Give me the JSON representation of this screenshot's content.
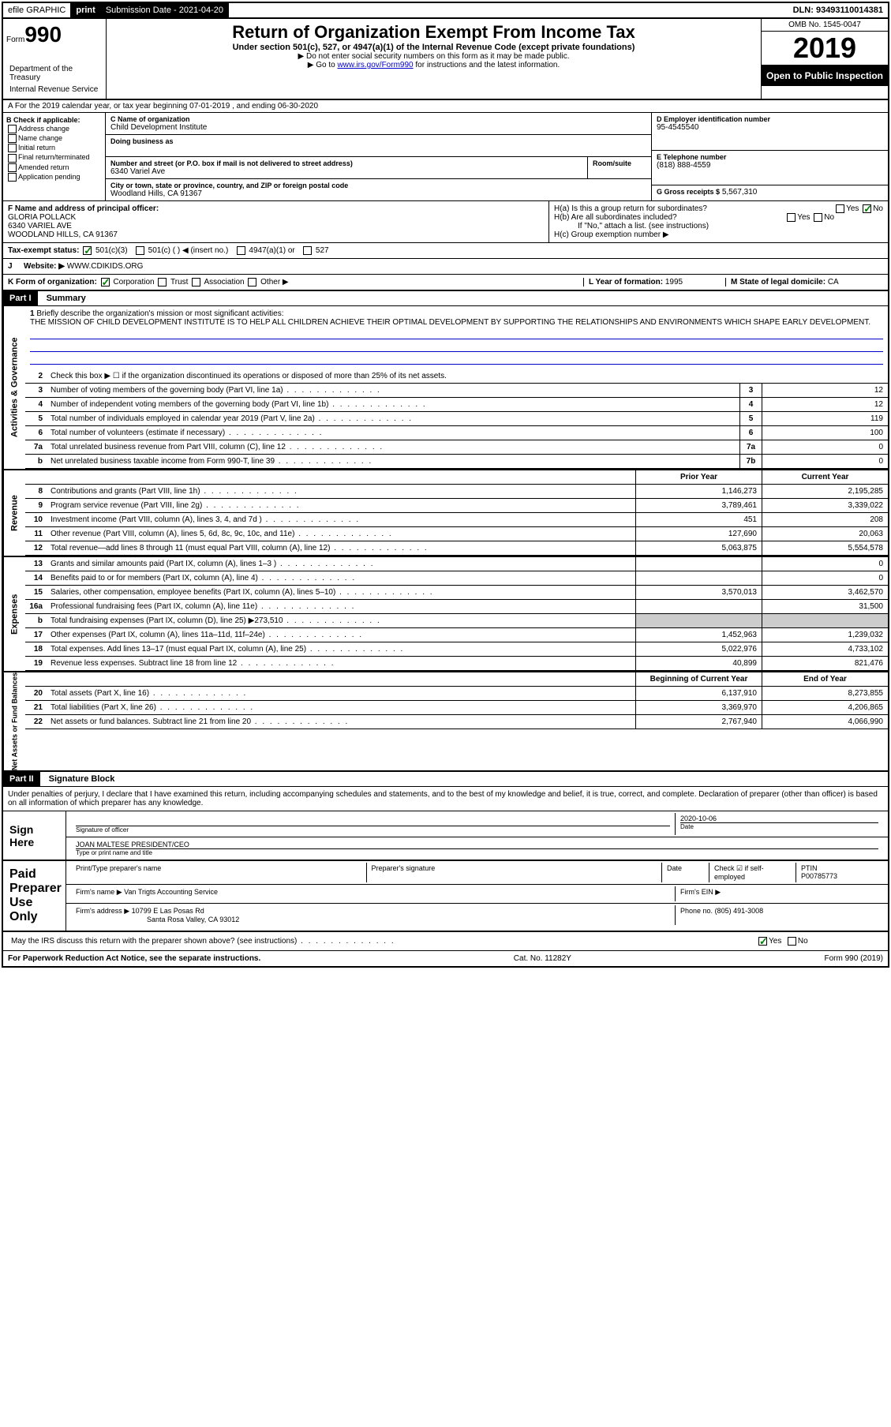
{
  "topbar": {
    "efile": "efile GRAPHIC",
    "print": "print",
    "submission_label": "Submission Date -",
    "submission_date": "2021-04-20",
    "dln_label": "DLN:",
    "dln": "93493110014381"
  },
  "header": {
    "form_prefix": "Form",
    "form_number": "990",
    "dept1": "Department of the Treasury",
    "dept2": "Internal Revenue Service",
    "title": "Return of Organization Exempt From Income Tax",
    "subtitle": "Under section 501(c), 527, or 4947(a)(1) of the Internal Revenue Code (except private foundations)",
    "note1": "▶ Do not enter social security numbers on this form as it may be made public.",
    "note2_pre": "▶ Go to ",
    "note2_link": "www.irs.gov/Form990",
    "note2_post": " for instructions and the latest information.",
    "omb": "OMB No. 1545-0047",
    "year": "2019",
    "open_public": "Open to Public Inspection"
  },
  "row_a": "A For the 2019 calendar year, or tax year beginning 07-01-2019   , and ending 06-30-2020",
  "section_b": {
    "label": "B Check if applicable:",
    "opts": [
      "Address change",
      "Name change",
      "Initial return",
      "Final return/terminated",
      "Amended return",
      "Application pending"
    ]
  },
  "section_c": {
    "name_label": "C Name of organization",
    "name": "Child Development Institute",
    "dba_label": "Doing business as",
    "dba": "",
    "addr_label": "Number and street (or P.O. box if mail is not delivered to street address)",
    "room_label": "Room/suite",
    "addr": "6340 Variel Ave",
    "city_label": "City or town, state or province, country, and ZIP or foreign postal code",
    "city": "Woodland Hills, CA  91367"
  },
  "section_d": {
    "ein_label": "D Employer identification number",
    "ein": "95-4545540",
    "phone_label": "E Telephone number",
    "phone": "(818) 888-4559",
    "gross_label": "G Gross receipts $",
    "gross": "5,567,310"
  },
  "section_f": {
    "label": "F  Name and address of principal officer:",
    "name": "GLORIA POLLACK",
    "addr1": "6340 VARIEL AVE",
    "addr2": "WOODLAND HILLS, CA  91367"
  },
  "section_h": {
    "ha": "H(a)  Is this a group return for subordinates?",
    "hb": "H(b)  Are all subordinates included?",
    "hb_note": "If \"No,\" attach a list. (see instructions)",
    "hc": "H(c)  Group exemption number ▶",
    "yes": "Yes",
    "no": "No"
  },
  "tax_status": {
    "label": "Tax-exempt status:",
    "o1": "501(c)(3)",
    "o2": "501(c) (  ) ◀ (insert no.)",
    "o3": "4947(a)(1) or",
    "o4": "527"
  },
  "website": {
    "label_j": "J",
    "label": "Website: ▶",
    "value": "WWW.CDIKIDS.ORG"
  },
  "row_k": {
    "label": "K Form of organization:",
    "o1": "Corporation",
    "o2": "Trust",
    "o3": "Association",
    "o4": "Other ▶",
    "l_label": "L Year of formation:",
    "l_val": "1995",
    "m_label": "M State of legal domicile:",
    "m_val": "CA"
  },
  "part1": {
    "header": "Part I",
    "title": "Summary"
  },
  "summary": {
    "side_activities": "Activities & Governance",
    "side_revenue": "Revenue",
    "side_expenses": "Expenses",
    "side_netassets": "Net Assets or Fund Balances",
    "line1_label": "Briefly describe the organization's mission or most significant activities:",
    "line1_text": "THE MISSION OF CHILD DEVELOPMENT INSTITUTE IS TO HELP ALL CHILDREN ACHIEVE THEIR OPTIMAL DEVELOPMENT BY SUPPORTING THE RELATIONSHIPS AND ENVIRONMENTS WHICH SHAPE EARLY DEVELOPMENT.",
    "line2": "Check this box ▶ ☐  if the organization discontinued its operations or disposed of more than 25% of its net assets.",
    "lines_gov": [
      {
        "n": "3",
        "t": "Number of voting members of the governing body (Part VI, line 1a)",
        "b": "3",
        "v": "12"
      },
      {
        "n": "4",
        "t": "Number of independent voting members of the governing body (Part VI, line 1b)",
        "b": "4",
        "v": "12"
      },
      {
        "n": "5",
        "t": "Total number of individuals employed in calendar year 2019 (Part V, line 2a)",
        "b": "5",
        "v": "119"
      },
      {
        "n": "6",
        "t": "Total number of volunteers (estimate if necessary)",
        "b": "6",
        "v": "100"
      },
      {
        "n": "7a",
        "t": "Total unrelated business revenue from Part VIII, column (C), line 12",
        "b": "7a",
        "v": "0"
      },
      {
        "n": "b",
        "t": "Net unrelated business taxable income from Form 990-T, line 39",
        "b": "7b",
        "v": "0"
      }
    ],
    "prior_year": "Prior Year",
    "current_year": "Current Year",
    "lines_rev": [
      {
        "n": "8",
        "t": "Contributions and grants (Part VIII, line 1h)",
        "p": "1,146,273",
        "c": "2,195,285"
      },
      {
        "n": "9",
        "t": "Program service revenue (Part VIII, line 2g)",
        "p": "3,789,461",
        "c": "3,339,022"
      },
      {
        "n": "10",
        "t": "Investment income (Part VIII, column (A), lines 3, 4, and 7d )",
        "p": "451",
        "c": "208"
      },
      {
        "n": "11",
        "t": "Other revenue (Part VIII, column (A), lines 5, 6d, 8c, 9c, 10c, and 11e)",
        "p": "127,690",
        "c": "20,063"
      },
      {
        "n": "12",
        "t": "Total revenue—add lines 8 through 11 (must equal Part VIII, column (A), line 12)",
        "p": "5,063,875",
        "c": "5,554,578"
      }
    ],
    "lines_exp": [
      {
        "n": "13",
        "t": "Grants and similar amounts paid (Part IX, column (A), lines 1–3 )",
        "p": "",
        "c": "0"
      },
      {
        "n": "14",
        "t": "Benefits paid to or for members (Part IX, column (A), line 4)",
        "p": "",
        "c": "0"
      },
      {
        "n": "15",
        "t": "Salaries, other compensation, employee benefits (Part IX, column (A), lines 5–10)",
        "p": "3,570,013",
        "c": "3,462,570"
      },
      {
        "n": "16a",
        "t": "Professional fundraising fees (Part IX, column (A), line 11e)",
        "p": "",
        "c": "31,500"
      },
      {
        "n": "b",
        "t": "Total fundraising expenses (Part IX, column (D), line 25) ▶273,510",
        "p": "grey",
        "c": "grey"
      },
      {
        "n": "17",
        "t": "Other expenses (Part IX, column (A), lines 11a–11d, 11f–24e)",
        "p": "1,452,963",
        "c": "1,239,032"
      },
      {
        "n": "18",
        "t": "Total expenses. Add lines 13–17 (must equal Part IX, column (A), line 25)",
        "p": "5,022,976",
        "c": "4,733,102"
      },
      {
        "n": "19",
        "t": "Revenue less expenses. Subtract line 18 from line 12",
        "p": "40,899",
        "c": "821,476"
      }
    ],
    "beg_year": "Beginning of Current Year",
    "end_year": "End of Year",
    "lines_net": [
      {
        "n": "20",
        "t": "Total assets (Part X, line 16)",
        "p": "6,137,910",
        "c": "8,273,855"
      },
      {
        "n": "21",
        "t": "Total liabilities (Part X, line 26)",
        "p": "3,369,970",
        "c": "4,206,865"
      },
      {
        "n": "22",
        "t": "Net assets or fund balances. Subtract line 21 from line 20",
        "p": "2,767,940",
        "c": "4,066,990"
      }
    ]
  },
  "part2": {
    "header": "Part II",
    "title": "Signature Block",
    "declaration": "Under penalties of perjury, I declare that I have examined this return, including accompanying schedules and statements, and to the best of my knowledge and belief, it is true, correct, and complete. Declaration of preparer (other than officer) is based on all information of which preparer has any knowledge."
  },
  "sign_here": {
    "label": "Sign Here",
    "sig_officer": "Signature of officer",
    "date_label": "Date",
    "date": "2020-10-06",
    "name_title": "JOAN MALTESE PRESIDENT/CEO",
    "name_title_label": "Type or print name and title"
  },
  "paid_prep": {
    "label": "Paid Preparer Use Only",
    "col1": "Print/Type preparer's name",
    "col2": "Preparer's signature",
    "col3": "Date",
    "col4_check": "Check ☑ if self-employed",
    "col5_label": "PTIN",
    "col5_val": "P00785773",
    "firm_name_label": "Firm's name    ▶",
    "firm_name": "Van Trigts Accounting Service",
    "firm_ein_label": "Firm's EIN ▶",
    "firm_addr_label": "Firm's address ▶",
    "firm_addr1": "10799 E Las Posas Rd",
    "firm_addr2": "Santa Rosa Valley, CA  93012",
    "firm_phone_label": "Phone no.",
    "firm_phone": "(805) 491-3008"
  },
  "discuss": {
    "text": "May the IRS discuss this return with the preparer shown above? (see instructions)",
    "yes": "Yes",
    "no": "No"
  },
  "footer": {
    "left": "For Paperwork Reduction Act Notice, see the separate instructions.",
    "middle": "Cat. No. 11282Y",
    "right": "Form 990 (2019)"
  }
}
